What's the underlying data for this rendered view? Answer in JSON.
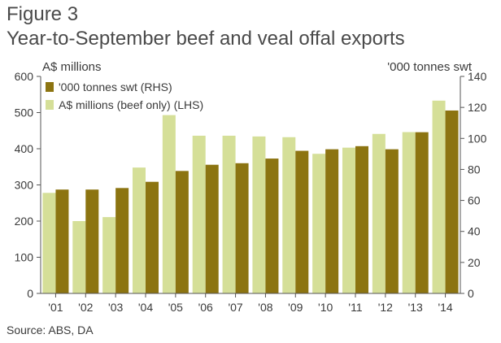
{
  "figure_label": "Figure 3",
  "source": "Source: ABS, DA",
  "colors": {
    "rhs": "#8c7411",
    "lhs": "#d5df98"
  },
  "chart_data": {
    "type": "bar",
    "title": "Year-to-September beef and veal offal exports",
    "categories": [
      "'01",
      "'02",
      "'03",
      "'04",
      "'05",
      "'06",
      "'07",
      "'08",
      "'09",
      "'10",
      "'11",
      "'12",
      "'13",
      "'14"
    ],
    "y_left": {
      "label": "A$ millions",
      "ylim": [
        0,
        600
      ],
      "ticks": [
        0,
        100,
        200,
        300,
        400,
        500,
        600
      ]
    },
    "y_right": {
      "label": "'000 tonnes swt",
      "ylim": [
        0,
        140
      ],
      "ticks": [
        0,
        20,
        40,
        60,
        80,
        100,
        120,
        140
      ]
    },
    "grid": false,
    "legend_position": "top-left",
    "series": [
      {
        "name": "A$ millions (beef only) (LHS)",
        "axis": "left",
        "values": [
          278,
          200,
          211,
          348,
          493,
          436,
          436,
          434,
          432,
          386,
          403,
          441,
          446,
          533
        ]
      },
      {
        "name": "'000 tonnes swt (RHS)",
        "axis": "right",
        "values": [
          67,
          67,
          68,
          72,
          79,
          83,
          84,
          87,
          92,
          93,
          95,
          93,
          104,
          118
        ]
      }
    ]
  }
}
